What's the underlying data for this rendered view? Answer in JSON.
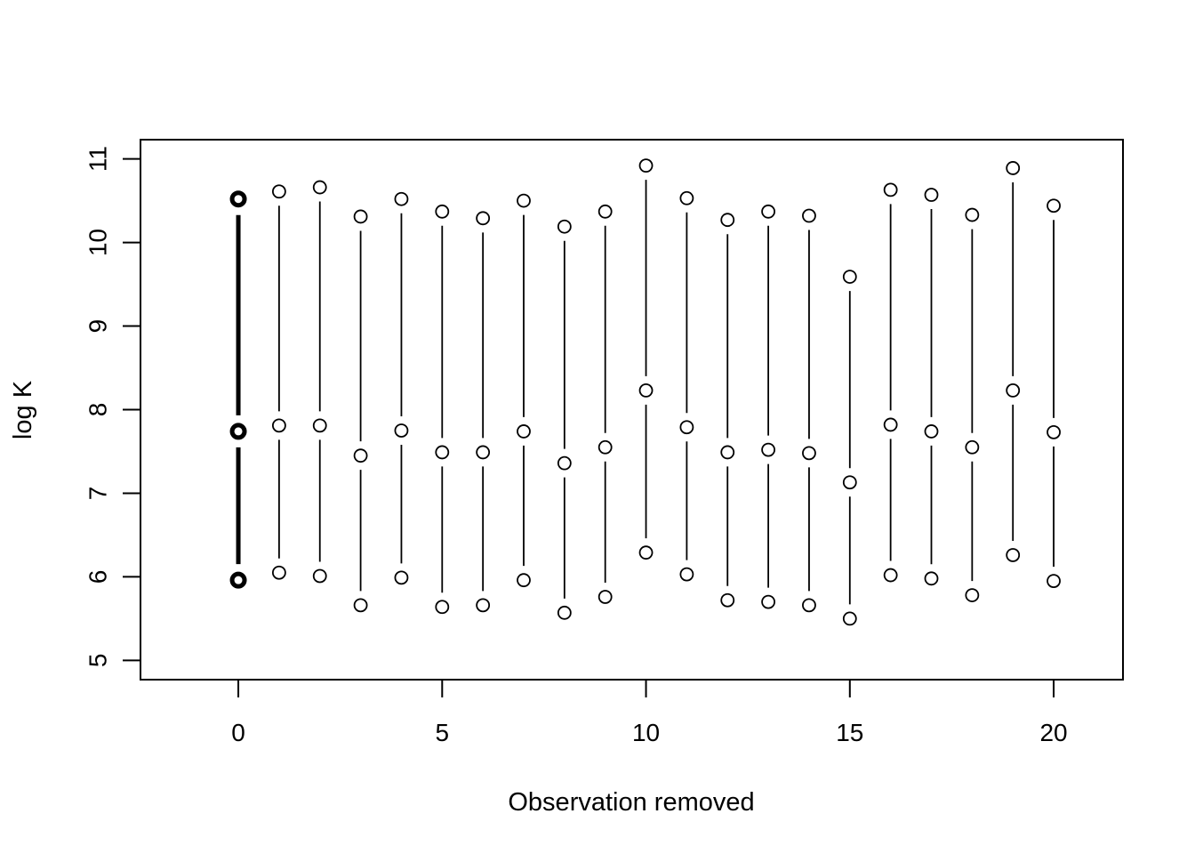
{
  "chart_data": {
    "type": "scatter",
    "title": "",
    "xlabel": "Observation removed",
    "ylabel": "log K",
    "xlim": [
      -2.4,
      21.7
    ],
    "ylim": [
      4.77,
      11.23
    ],
    "x_ticks": [
      0,
      5,
      10,
      15,
      20
    ],
    "y_ticks": [
      5,
      6,
      7,
      8,
      9,
      10,
      11
    ],
    "grid": false,
    "legend": "none",
    "highlighted_x": 0,
    "series": [
      {
        "x": [
          0,
          1,
          2,
          3,
          4,
          5,
          6,
          7,
          8,
          9,
          10,
          11,
          12,
          13,
          14,
          15,
          16,
          17,
          18,
          19,
          20
        ],
        "lower": [
          5.96,
          6.05,
          6.01,
          5.66,
          5.99,
          5.64,
          5.66,
          5.96,
          5.57,
          5.76,
          6.29,
          6.03,
          5.72,
          5.7,
          5.66,
          5.5,
          6.02,
          5.98,
          5.78,
          6.26,
          5.95
        ],
        "estimate": [
          7.74,
          7.81,
          7.81,
          7.45,
          7.75,
          7.49,
          7.49,
          7.74,
          7.36,
          7.55,
          8.23,
          7.79,
          7.49,
          7.52,
          7.48,
          7.13,
          7.82,
          7.74,
          7.55,
          8.23,
          7.73
        ],
        "upper": [
          10.52,
          10.61,
          10.66,
          10.31,
          10.52,
          10.37,
          10.29,
          10.5,
          10.19,
          10.37,
          10.92,
          10.53,
          10.27,
          10.37,
          10.32,
          9.59,
          10.63,
          10.57,
          10.33,
          10.89,
          10.44
        ]
      }
    ]
  }
}
